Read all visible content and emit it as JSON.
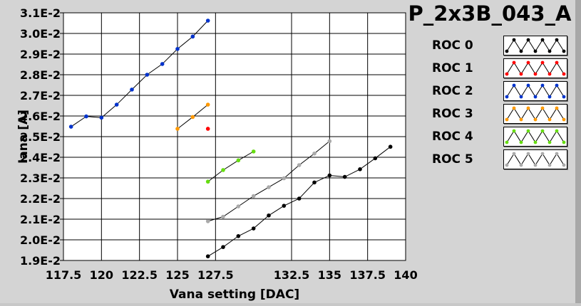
{
  "chart_data": {
    "type": "line",
    "title": "P_2x3B_043_A",
    "xlabel": "Vana setting [DAC]",
    "ylabel": "Iana [A]",
    "xlim": [
      117.5,
      140
    ],
    "ylim": [
      0.019,
      0.031
    ],
    "grid": true,
    "legend_placement": "right",
    "x_tick_labels": [
      "117.5",
      "120",
      "122.5",
      "125",
      "127.5",
      "132.5",
      "135",
      "137.5",
      "140"
    ],
    "y_tick_labels": [
      "1.9E-2",
      "2.0E-2",
      "2.1E-2",
      "2.2E-2",
      "2.3E-2",
      "2.4E-2",
      "2.5E-2",
      "2.6E-2",
      "2.7E-2",
      "2.8E-2",
      "2.9E-2",
      "3.0E-2",
      "3.1E-2"
    ],
    "series": [
      {
        "name": "ROC 0",
        "color": "#000000",
        "points": [
          [
            127,
            0.0192
          ],
          [
            128,
            0.01965
          ],
          [
            129,
            0.02018
          ],
          [
            130,
            0.02055
          ],
          [
            131,
            0.02118
          ],
          [
            132,
            0.02165
          ],
          [
            133,
            0.022
          ],
          [
            134,
            0.02278
          ],
          [
            135,
            0.02312
          ],
          [
            136,
            0.02305
          ],
          [
            137,
            0.02342
          ],
          [
            138,
            0.02395
          ],
          [
            139,
            0.02451
          ]
        ]
      },
      {
        "name": "ROC 1",
        "color": "#ff0000",
        "points": [
          [
            127,
            0.02538
          ]
        ]
      },
      {
        "name": "ROC 2",
        "color": "#0033cc",
        "points": [
          [
            118,
            0.02548
          ],
          [
            119,
            0.02598
          ],
          [
            120,
            0.02592
          ],
          [
            121,
            0.02655
          ],
          [
            122,
            0.02728
          ],
          [
            123,
            0.028
          ],
          [
            124,
            0.02852
          ],
          [
            125,
            0.02925
          ],
          [
            126,
            0.02985
          ],
          [
            127,
            0.03062
          ]
        ]
      },
      {
        "name": "ROC 3",
        "color": "#ff9900",
        "points": [
          [
            125,
            0.02538
          ],
          [
            126,
            0.02595
          ],
          [
            127,
            0.02655
          ]
        ]
      },
      {
        "name": "ROC 4",
        "color": "#66dd11",
        "points": [
          [
            127,
            0.02282
          ],
          [
            128,
            0.02338
          ],
          [
            129,
            0.02385
          ],
          [
            130,
            0.02428
          ]
        ]
      },
      {
        "name": "ROC 5",
        "color": "#aaaaaa",
        "points": [
          [
            127,
            0.0209
          ],
          [
            128,
            0.02112
          ],
          [
            129,
            0.02162
          ],
          [
            130,
            0.02212
          ],
          [
            131,
            0.02255
          ],
          [
            132,
            0.02298
          ],
          [
            133,
            0.02362
          ],
          [
            134,
            0.02418
          ],
          [
            135,
            0.02478
          ]
        ]
      }
    ]
  }
}
